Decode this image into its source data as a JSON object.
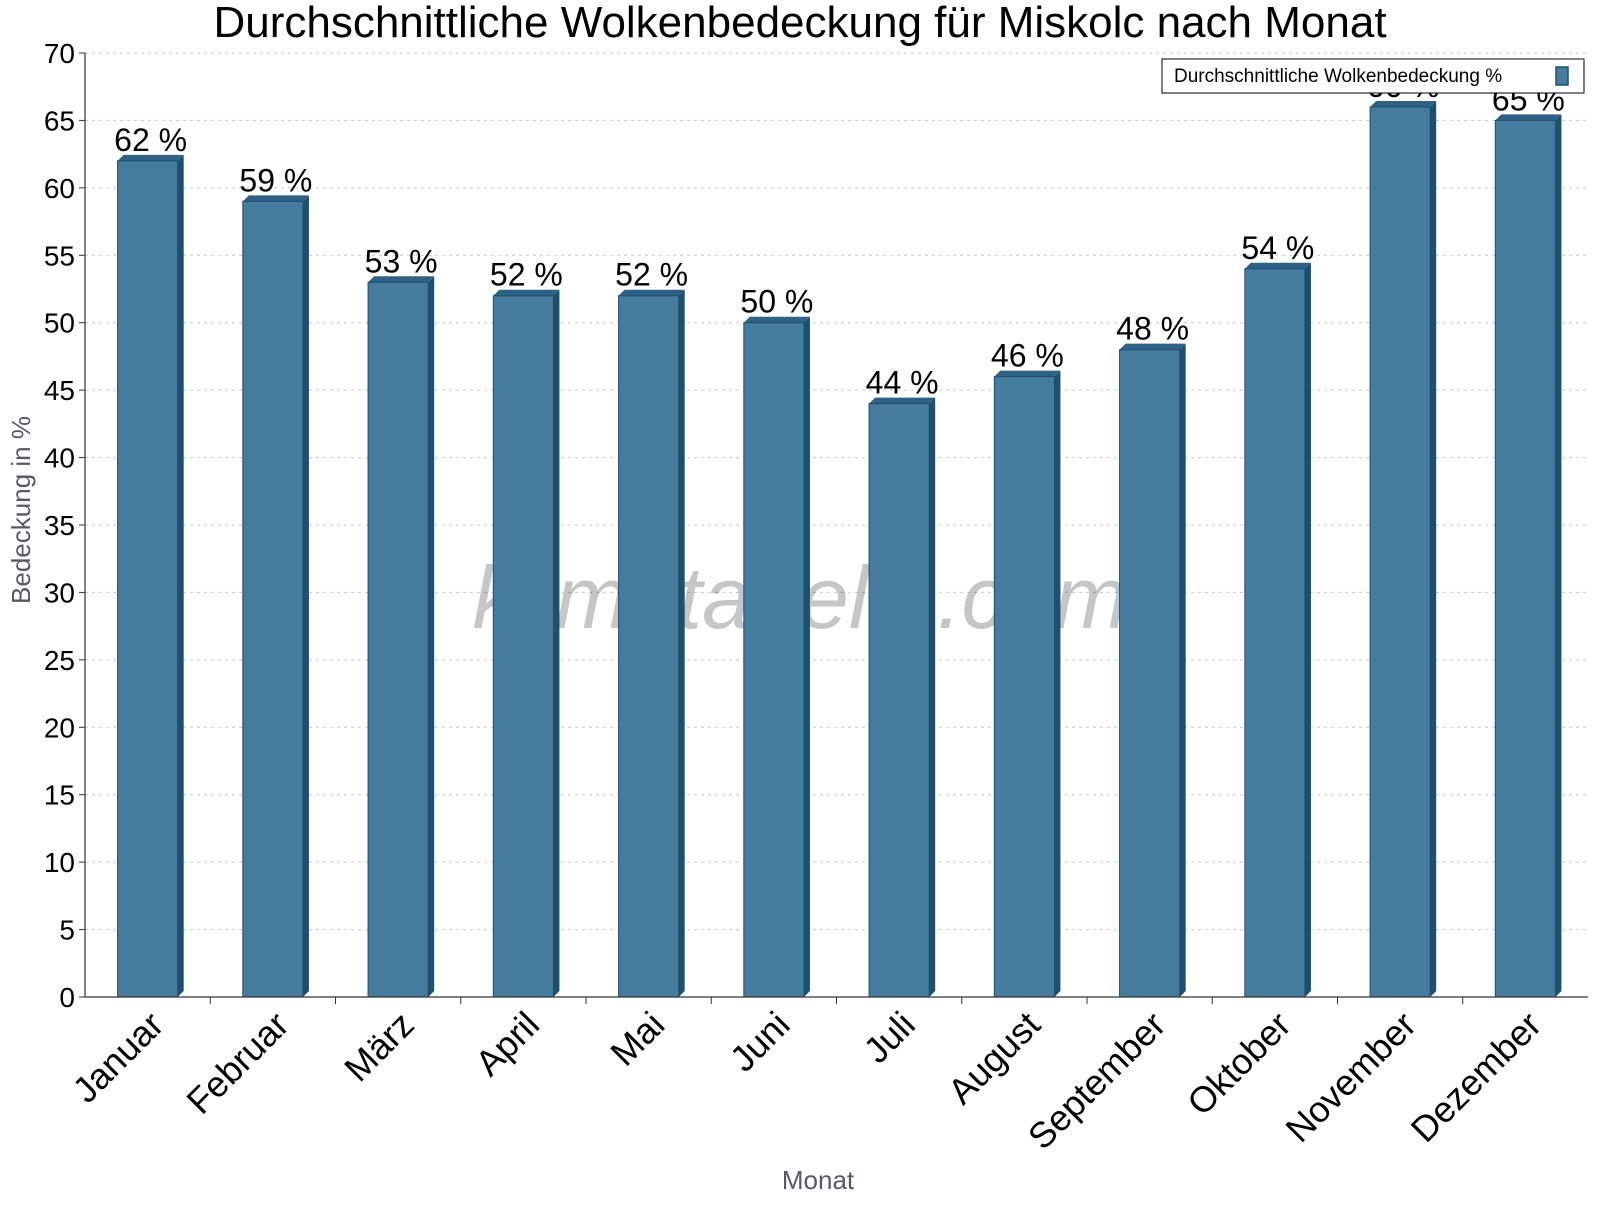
{
  "chart_data": {
    "type": "bar",
    "title": "Durchschnittliche Wolkenbedeckung für Miskolc nach Monat",
    "xlabel": "Monat",
    "ylabel": "Bedeckung in %",
    "ylim": [
      0,
      70
    ],
    "ytick_step": 5,
    "grid": true,
    "legend_position": "top-right",
    "categories": [
      "Januar",
      "Februar",
      "März",
      "April",
      "Mai",
      "Juni",
      "Juli",
      "August",
      "September",
      "Oktober",
      "November",
      "Dezember"
    ],
    "series": [
      {
        "name": "Durchschnittliche Wolkenbedeckung %",
        "values": [
          62,
          59,
          53,
          52,
          52,
          50,
          44,
          46,
          48,
          54,
          66,
          65
        ],
        "value_suffix": " %"
      }
    ],
    "watermark": "klimatabelle.com",
    "colors": {
      "bar_front": "#457b9d",
      "bar_side": "#1f4f6e",
      "bar_top": "#2d6286",
      "grid": "#c8c8c8",
      "axis": "#333333"
    }
  }
}
